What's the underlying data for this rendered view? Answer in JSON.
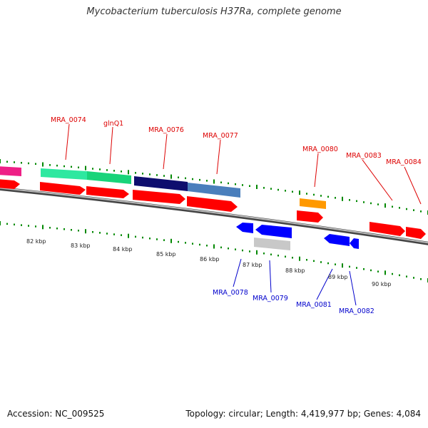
{
  "title": "Mycobacterium tuberculosis H37Ra, complete genome",
  "footer": {
    "accession": "Accession: NC_009525",
    "topology": "Topology: circular; Length: 4,419,977 bp; Genes: 4,084"
  },
  "colors": {
    "forward_label": "#dd0000",
    "reverse_label": "#0000cc",
    "cds_red": "#ff0000",
    "cds_blue": "#0000ff",
    "backbone": "#888888",
    "ticks": "#008800"
  },
  "scale_labels": [
    "82 kbp",
    "83 kbp",
    "84 kbp",
    "85 kbp",
    "86 kbp",
    "87 kbp",
    "88 kbp",
    "89 kbp",
    "90 kbp"
  ],
  "gene_labels": {
    "forward": [
      "MRA_0074",
      "glnQ1",
      "MRA_0076",
      "MRA_0077",
      "MRA_0080",
      "MRA_0083",
      "MRA_0084"
    ],
    "reverse": [
      "MRA_0078",
      "MRA_0079",
      "MRA_0081",
      "MRA_0082"
    ]
  }
}
